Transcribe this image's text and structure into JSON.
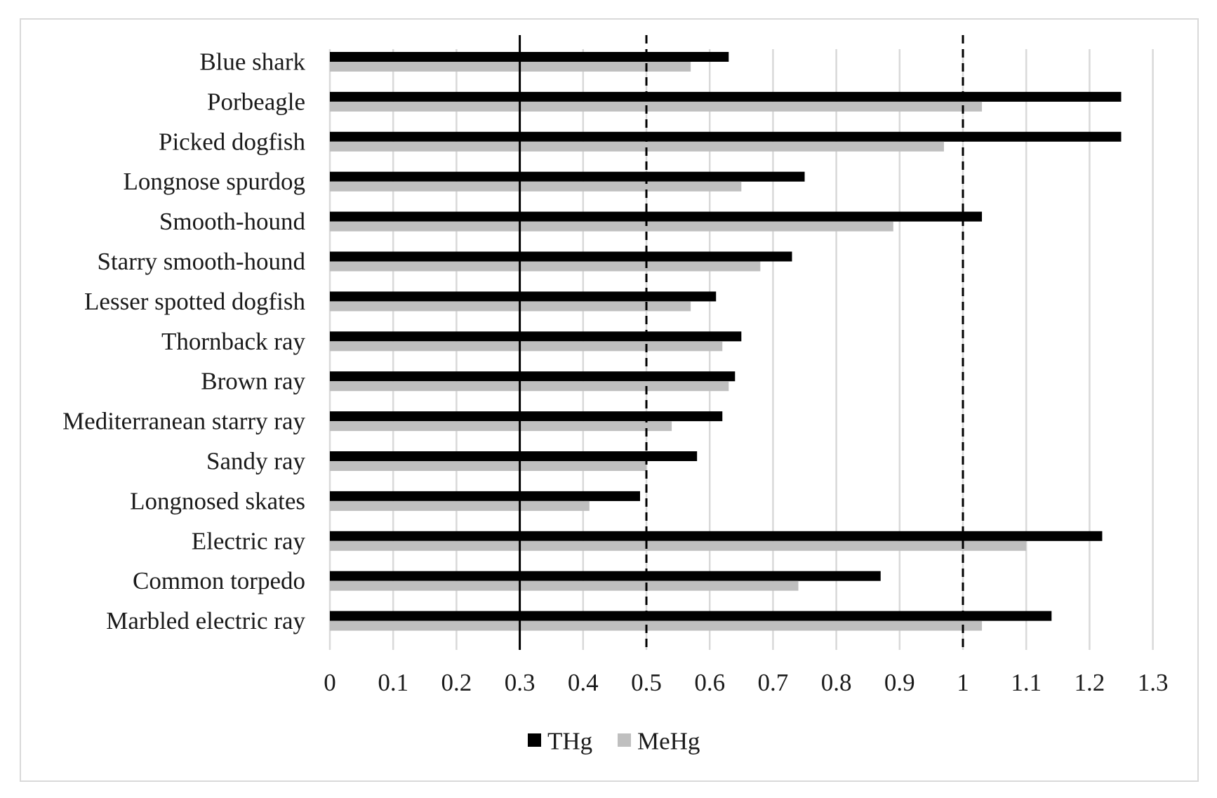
{
  "chart_data": {
    "type": "bar",
    "orientation": "horizontal",
    "categories": [
      "Blue shark",
      "Porbeagle",
      "Picked dogfish",
      "Longnose spurdog",
      "Smooth-hound",
      "Starry smooth-hound",
      "Lesser spotted dogfish",
      "Thornback ray",
      "Brown ray",
      "Mediterranean starry ray",
      "Sandy ray",
      "Longnosed skates",
      "Electric ray",
      "Common torpedo",
      "Marbled electric ray"
    ],
    "series": [
      {
        "name": "THg",
        "color": "#000000",
        "values": [
          0.63,
          1.25,
          1.25,
          0.75,
          1.03,
          0.73,
          0.61,
          0.65,
          0.64,
          0.62,
          0.58,
          0.49,
          1.22,
          0.87,
          1.14
        ]
      },
      {
        "name": "MeHg",
        "color": "#bfbfbf",
        "values": [
          0.57,
          1.03,
          0.97,
          0.65,
          0.89,
          0.68,
          0.57,
          0.62,
          0.63,
          0.54,
          0.5,
          0.41,
          1.1,
          0.74,
          1.03
        ]
      }
    ],
    "xlim": [
      0,
      1.3
    ],
    "xticks": [
      "0",
      "0.1",
      "0.2",
      "0.3",
      "0.4",
      "0.5",
      "0.6",
      "0.7",
      "0.8",
      "0.9",
      "1",
      "1.1",
      "1.2",
      "1.3"
    ],
    "xtick_values": [
      0,
      0.1,
      0.2,
      0.3,
      0.4,
      0.5,
      0.6,
      0.7,
      0.8,
      0.9,
      1.0,
      1.1,
      1.2,
      1.3
    ],
    "reference_lines": [
      {
        "value": 0.3,
        "style": "solid"
      },
      {
        "value": 0.5,
        "style": "dashed"
      },
      {
        "value": 1.0,
        "style": "dashed"
      }
    ],
    "grid": true,
    "legend_position": "bottom",
    "title": "",
    "xlabel": "",
    "ylabel": ""
  }
}
